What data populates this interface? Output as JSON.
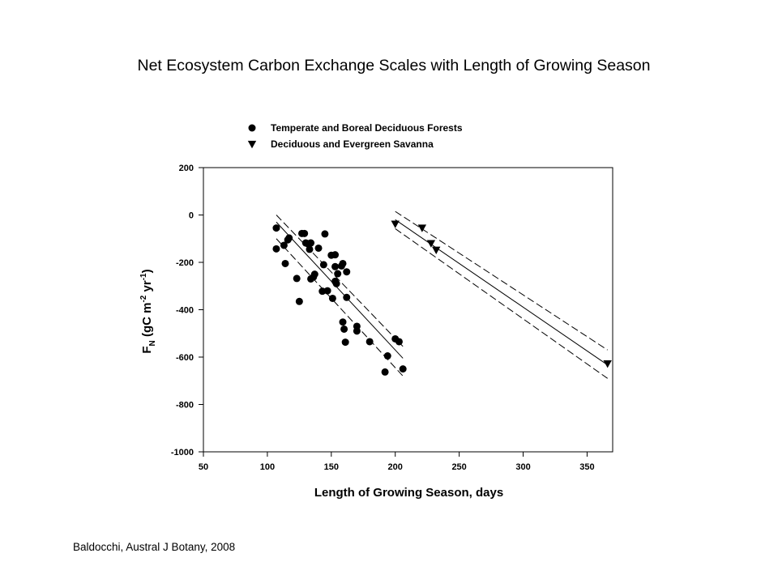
{
  "slide": {
    "title": "Net Ecosystem Carbon Exchange Scales with Length of Growing Season",
    "citation": "Baldocchi, Austral J Botany, 2008"
  },
  "chart_data": {
    "type": "scatter",
    "xlabel": "Length of Growing Season, days",
    "ylabel": "F_N (gC m^-2 yr^-1)",
    "xlim": [
      50,
      370
    ],
    "ylim": [
      -1000,
      200
    ],
    "xticks": [
      50,
      100,
      150,
      200,
      250,
      300,
      350
    ],
    "yticks": [
      200,
      0,
      -200,
      -400,
      -600,
      -800,
      -1000
    ],
    "grid": false,
    "legend_position": "top-left (above plot)",
    "series": [
      {
        "name": "Temperate and Boreal Deciduous Forests",
        "marker": "circle",
        "color": "#000000",
        "points": [
          [
            107,
            -55
          ],
          [
            107,
            -143
          ],
          [
            113,
            -128
          ],
          [
            114,
            -205
          ],
          [
            116,
            -105
          ],
          [
            117,
            -97
          ],
          [
            123,
            -268
          ],
          [
            125,
            -365
          ],
          [
            127,
            -78
          ],
          [
            129,
            -78
          ],
          [
            130,
            -118
          ],
          [
            131,
            -120
          ],
          [
            133,
            -145
          ],
          [
            134,
            -118
          ],
          [
            134,
            -270
          ],
          [
            136,
            -262
          ],
          [
            137,
            -250
          ],
          [
            140,
            -140
          ],
          [
            143,
            -322
          ],
          [
            144,
            -210
          ],
          [
            145,
            -80
          ],
          [
            147,
            -320
          ],
          [
            150,
            -170
          ],
          [
            151,
            -352
          ],
          [
            153,
            -168
          ],
          [
            153,
            -218
          ],
          [
            153,
            -280
          ],
          [
            154,
            -290
          ],
          [
            155,
            -248
          ],
          [
            158,
            -215
          ],
          [
            159,
            -205
          ],
          [
            159,
            -452
          ],
          [
            160,
            -482
          ],
          [
            161,
            -537
          ],
          [
            162,
            -348
          ],
          [
            162,
            -240
          ],
          [
            170,
            -470
          ],
          [
            170,
            -490
          ],
          [
            180,
            -535
          ],
          [
            192,
            -663
          ],
          [
            194,
            -595
          ],
          [
            200,
            -523
          ],
          [
            203,
            -535
          ],
          [
            206,
            -650
          ]
        ]
      },
      {
        "name": "Deciduous and Evergreen Savanna",
        "marker": "triangle-down",
        "color": "#000000",
        "points": [
          [
            200,
            -38
          ],
          [
            221,
            -55
          ],
          [
            228,
            -120
          ],
          [
            232,
            -148
          ],
          [
            366,
            -628
          ]
        ]
      }
    ],
    "regression_lines": [
      {
        "series": "Temperate and Boreal Deciduous Forests",
        "style": "solid",
        "from": [
          107,
          -30
        ],
        "to": [
          206,
          -605
        ]
      },
      {
        "series": "Temperate and Boreal Deciduous Forests",
        "style": "dashed",
        "from": [
          107,
          0
        ],
        "to": [
          206,
          -555
        ]
      },
      {
        "series": "Temperate and Boreal Deciduous Forests",
        "style": "dashed",
        "from": [
          107,
          -100
        ],
        "to": [
          206,
          -680
        ]
      },
      {
        "series": "Deciduous and Evergreen Savanna",
        "style": "solid",
        "from": [
          200,
          -20
        ],
        "to": [
          366,
          -633
        ]
      },
      {
        "series": "Deciduous and Evergreen Savanna",
        "style": "dashed",
        "from": [
          200,
          15
        ],
        "to": [
          366,
          -570
        ]
      },
      {
        "series": "Deciduous and Evergreen Savanna",
        "style": "dashed",
        "from": [
          200,
          -58
        ],
        "to": [
          366,
          -690
        ]
      }
    ]
  }
}
